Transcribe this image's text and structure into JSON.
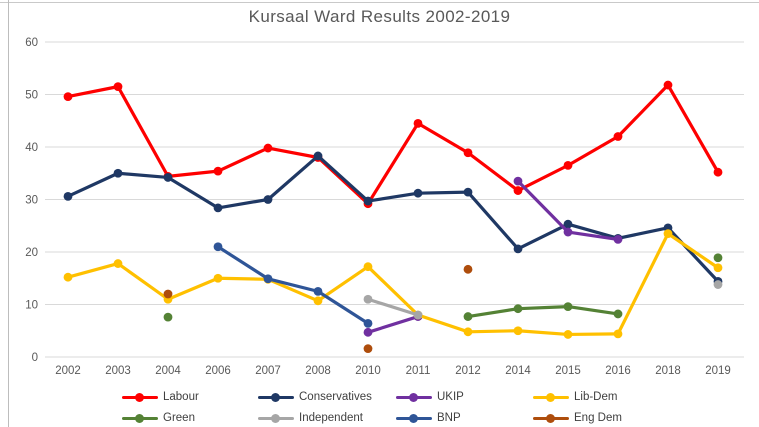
{
  "chart_data": {
    "type": "line",
    "title": "Kursaal Ward Results 2002-2019",
    "xlabel": "",
    "ylabel": "",
    "ylim": [
      0,
      60
    ],
    "y_ticks": [
      0,
      10,
      20,
      30,
      40,
      50,
      60
    ],
    "grid": true,
    "legend_position": "bottom",
    "categories": [
      "2002",
      "2003",
      "2004",
      "2006",
      "2007",
      "2008",
      "2010",
      "2011",
      "2012",
      "2014",
      "2015",
      "2016",
      "2018",
      "2019"
    ],
    "series": [
      {
        "name": "Labour",
        "color": "#fe0000",
        "values": [
          49.6,
          51.5,
          34.4,
          35.4,
          39.8,
          38.0,
          29.2,
          44.5,
          38.9,
          31.7,
          36.5,
          42.0,
          51.8,
          35.2
        ]
      },
      {
        "name": "Conservatives",
        "color": "#1f3864",
        "values": [
          30.6,
          35.0,
          34.2,
          28.4,
          30.0,
          38.3,
          29.7,
          31.2,
          31.4,
          20.6,
          25.3,
          22.6,
          24.6,
          14.4
        ]
      },
      {
        "name": "UKIP",
        "color": "#7030a0",
        "values": [
          null,
          null,
          null,
          null,
          null,
          null,
          4.7,
          7.7,
          null,
          33.5,
          23.8,
          22.4,
          null,
          null
        ]
      },
      {
        "name": "Lib-Dem",
        "color": "#ffc000",
        "values": [
          15.2,
          17.8,
          11.0,
          15.0,
          14.8,
          10.7,
          17.2,
          8.0,
          4.8,
          5.0,
          4.3,
          4.4,
          23.5,
          17.0
        ]
      },
      {
        "name": "Green",
        "color": "#548235",
        "values": [
          null,
          null,
          7.6,
          null,
          null,
          null,
          null,
          null,
          7.7,
          9.2,
          9.6,
          8.2,
          null,
          18.9
        ]
      },
      {
        "name": "Independent",
        "color": "#a6a6a6",
        "values": [
          null,
          null,
          null,
          null,
          null,
          null,
          11.0,
          8.0,
          null,
          null,
          null,
          null,
          null,
          13.8
        ]
      },
      {
        "name": "BNP",
        "color": "#2f5597",
        "values": [
          null,
          null,
          null,
          21.0,
          14.9,
          12.5,
          6.4,
          null,
          null,
          null,
          null,
          null,
          null,
          null
        ]
      },
      {
        "name": "Eng Dem",
        "color": "#ae4d0c",
        "values": [
          null,
          null,
          12.0,
          null,
          null,
          null,
          1.6,
          null,
          16.7,
          null,
          null,
          null,
          null,
          null
        ]
      }
    ],
    "legend_rows": [
      [
        "Labour",
        "Conservatives",
        "UKIP",
        "Lib-Dem"
      ],
      [
        "Green",
        "Independent",
        "BNP",
        "Eng Dem"
      ]
    ]
  },
  "theme": {
    "grid_color": "#d9d9d9",
    "axis_text_color": "#595959",
    "title_color": "#595959",
    "legend_text_color": "#3f3f3f",
    "background": "#ffffff"
  }
}
